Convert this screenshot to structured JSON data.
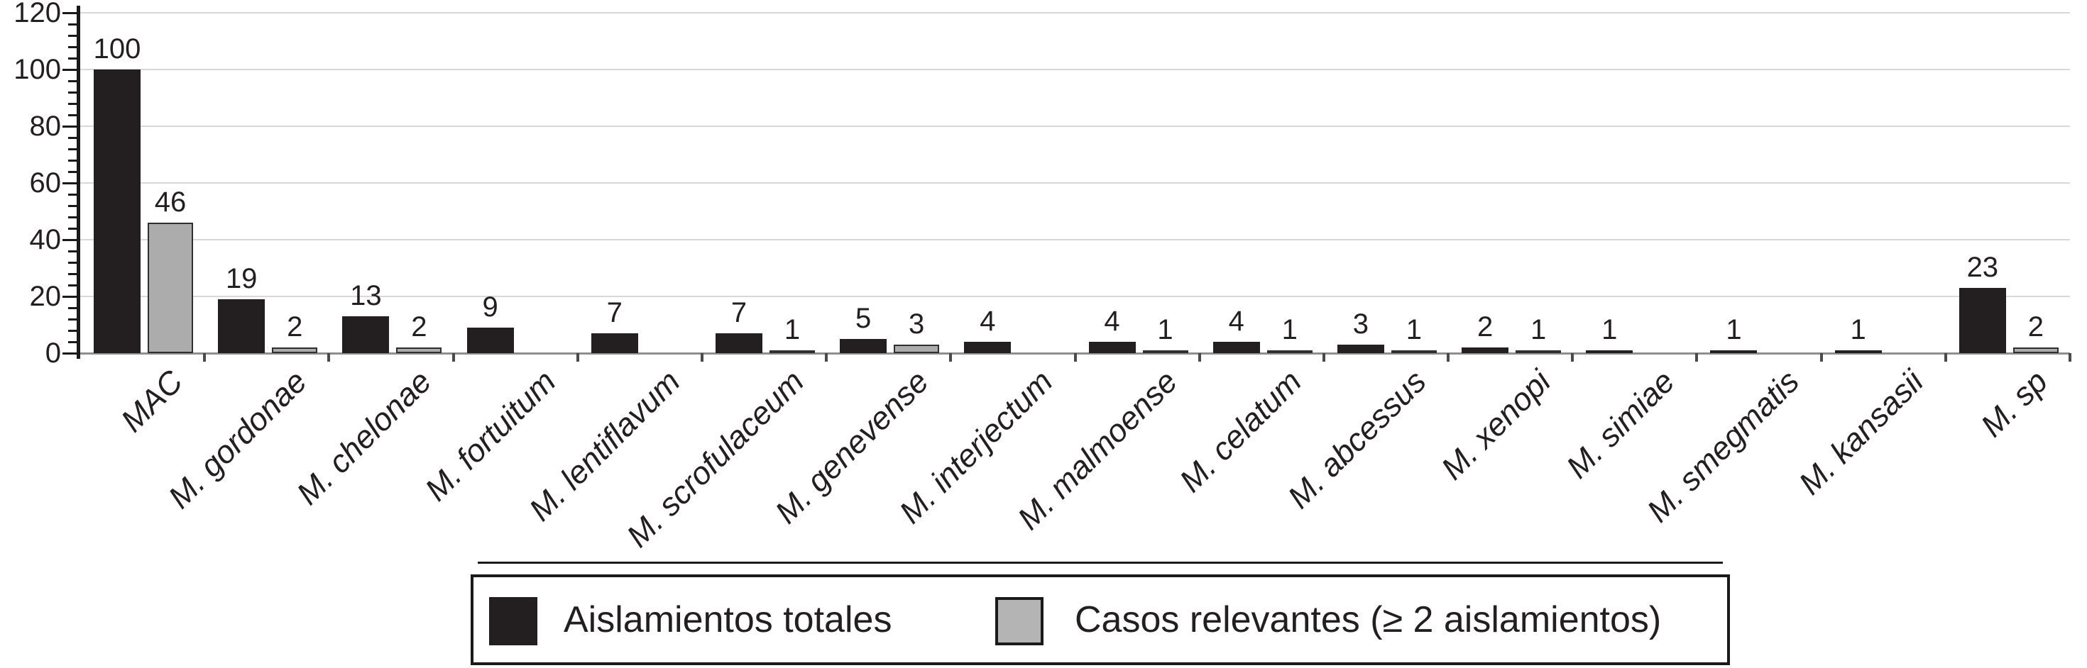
{
  "chart_data": {
    "type": "bar",
    "categories": [
      "MAC",
      "M. gordonae",
      "M. chelonae",
      "M. fortuitum",
      "M. lentiflavum",
      "M. scrofulaceum",
      "M. genevense",
      "M. interjectum",
      "M. malmoense",
      "M. celatum",
      "M. abcessus",
      "M. xenopi",
      "M. simiae",
      "M. smegmatis",
      "M. kansasii",
      "M. sp"
    ],
    "series": [
      {
        "name": "Aislamientos totales",
        "color": "#231f20",
        "values": [
          100,
          19,
          13,
          9,
          7,
          7,
          5,
          4,
          4,
          4,
          3,
          2,
          1,
          1,
          1,
          23
        ]
      },
      {
        "name": "Casos relevantes (≥ 2 aislamientos)",
        "color": "#adacac",
        "border_color": "#2f2f2f",
        "values": [
          46,
          2,
          2,
          null,
          null,
          1,
          3,
          null,
          1,
          1,
          1,
          1,
          null,
          null,
          null,
          2
        ]
      }
    ],
    "title": "",
    "xlabel": "",
    "ylabel": "",
    "ylim": [
      0,
      120
    ],
    "yticks": [
      0,
      20,
      40,
      60,
      80,
      100,
      120
    ],
    "minor_tick_step": 4,
    "grid": true,
    "bar_value_labels_shown": true,
    "category_labels_style": "italic, rotated 45°",
    "legend_position": "bottom",
    "gridline_color": "#d9d9d9",
    "axis_color": "#1a1a1a"
  }
}
